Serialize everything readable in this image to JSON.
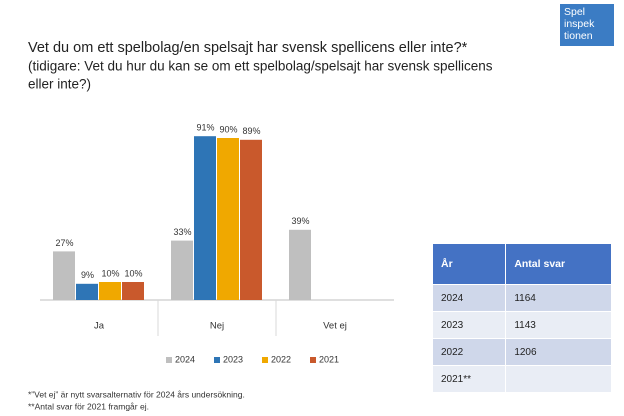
{
  "logo": [
    "Spel",
    "inspek",
    "tionen"
  ],
  "chart_data": {
    "type": "bar",
    "title": "Vet du om ett spelbolag/en spelsajt har svensk spellicens eller inte?*",
    "subtitle": [
      "(tidigare: Vet du hur du kan se om ett spelbolag/spelsajt har svensk spellicens",
      "eller inte?)"
    ],
    "categories": [
      "Ja",
      "Nej",
      "Vet ej"
    ],
    "series": [
      {
        "name": "2024",
        "color": "#bfbfbf",
        "values": [
          27,
          33,
          39
        ],
        "value_labels": [
          "27%",
          "33%",
          "39%"
        ]
      },
      {
        "name": "2023",
        "color": "#2e75b6",
        "values": [
          9,
          91,
          null
        ],
        "value_labels": [
          "9%",
          "91%",
          null
        ]
      },
      {
        "name": "2022",
        "color": "#f0a800",
        "values": [
          10,
          90,
          null
        ],
        "value_labels": [
          "10%",
          "90%",
          null
        ]
      },
      {
        "name": "2021",
        "color": "#c9592c",
        "values": [
          10,
          89,
          null
        ],
        "value_labels": [
          "10%",
          "89%",
          null
        ]
      }
    ],
    "ylim": [
      0,
      100
    ],
    "legend": "bottom"
  },
  "table": {
    "header": [
      "År",
      "Antal svar"
    ],
    "rows": [
      [
        "2024",
        "1164"
      ],
      [
        "2023",
        "1143"
      ],
      [
        "2022",
        "1206"
      ],
      [
        "2021**"
      ]
    ]
  },
  "footnotes": [
    "*”Vet ej” är nytt svarsalternativ för 2024 års undersökning.",
    "**Antal svar för 2021 framgår ej."
  ]
}
